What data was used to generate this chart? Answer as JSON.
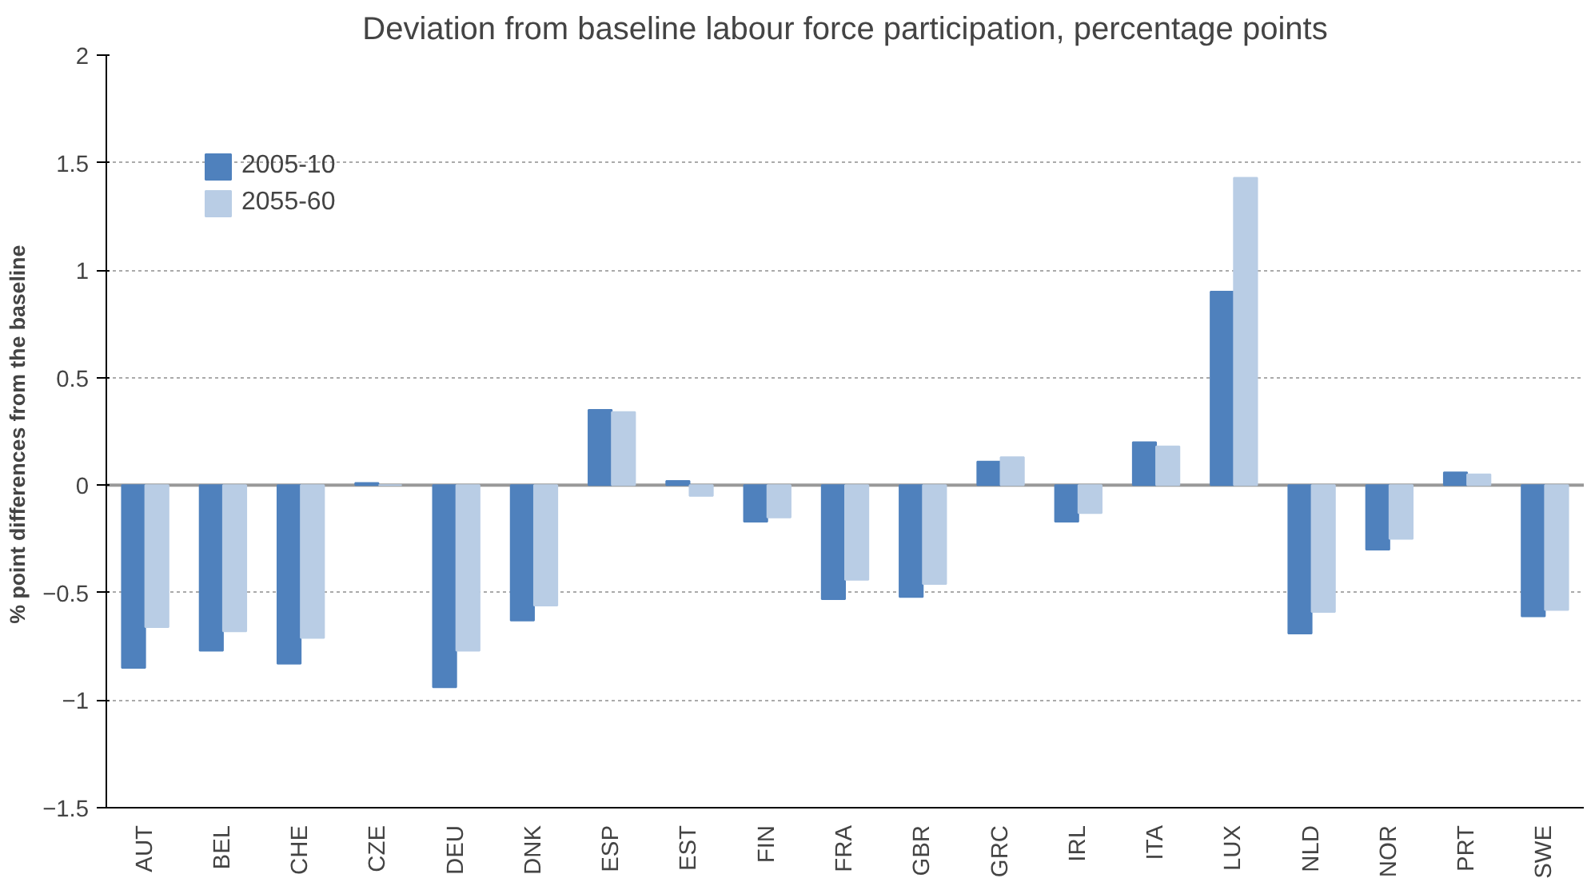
{
  "chart_data": {
    "type": "bar",
    "title": "Deviation from baseline labour force participation, percentage points",
    "ylabel": "% point differences from  the baseline",
    "categories": [
      "AUT",
      "BEL",
      "CHE",
      "CZE",
      "DEU",
      "DNK",
      "ESP",
      "EST",
      "FIN",
      "FRA",
      "GBR",
      "GRC",
      "IRL",
      "ITA",
      "LUX",
      "NLD",
      "NOR",
      "PRT",
      "SWE"
    ],
    "series": [
      {
        "name": "2005-10",
        "color": "#4f81bd",
        "values": [
          -0.85,
          -0.77,
          -0.83,
          0.01,
          -0.94,
          -0.63,
          0.35,
          0.02,
          -0.17,
          -0.53,
          -0.52,
          0.11,
          -0.17,
          0.2,
          0.9,
          -0.69,
          -0.3,
          0.06,
          -0.61
        ]
      },
      {
        "name": "2055-60",
        "color": "#b9cde5",
        "values": [
          -0.66,
          -0.68,
          -0.71,
          0.0,
          -0.77,
          -0.56,
          0.34,
          -0.05,
          -0.15,
          -0.44,
          -0.46,
          0.13,
          -0.13,
          0.18,
          1.43,
          -0.59,
          -0.25,
          0.05,
          -0.58
        ]
      }
    ],
    "ylim": [
      -1.5,
      2
    ],
    "yticks": [
      -1.5,
      -1,
      -0.5,
      0,
      0.5,
      1,
      1.5,
      2
    ],
    "grid": "y",
    "legend": "top left"
  }
}
